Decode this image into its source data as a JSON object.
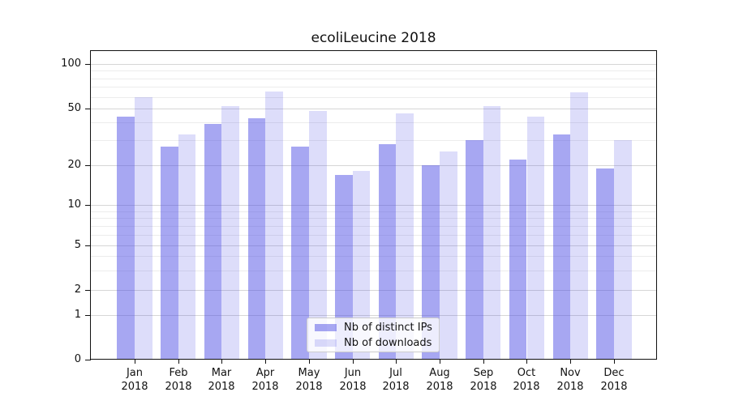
{
  "chart_data": {
    "type": "bar",
    "title": "ecoliLeucine 2018",
    "categories": [
      "Jan",
      "Feb",
      "Mar",
      "Apr",
      "May",
      "Jun",
      "Jul",
      "Aug",
      "Sep",
      "Oct",
      "Nov",
      "Dec"
    ],
    "year_label": "2018",
    "series": [
      {
        "name": "Nb of distinct IPs",
        "color": "rgba(72,72,228,0.48)",
        "values": [
          44,
          27,
          39,
          43,
          27,
          17,
          28,
          20,
          30,
          22,
          33,
          19
        ]
      },
      {
        "name": "Nb of downloads",
        "color": "rgba(72,72,228,0.19)",
        "values": [
          60,
          33,
          52,
          65,
          48,
          18,
          46,
          25,
          52,
          44,
          64,
          30
        ]
      }
    ],
    "yscale": "symlog",
    "ylim": [
      0,
      125
    ],
    "yticks": [
      0,
      1,
      2,
      5,
      10,
      20,
      50,
      100
    ],
    "minor_gridlines": [
      3,
      4,
      6,
      7,
      8,
      9,
      30,
      40,
      60,
      70,
      80,
      90
    ],
    "grid": "on",
    "legend_position": "lower center",
    "colors": {
      "bar_dark_on_white": "#a7a7f0",
      "bar_light_on_white": "#dcdcf9",
      "grid_major": "#d6d6d6",
      "grid_minor": "#ececec",
      "axis": "#111111"
    }
  }
}
